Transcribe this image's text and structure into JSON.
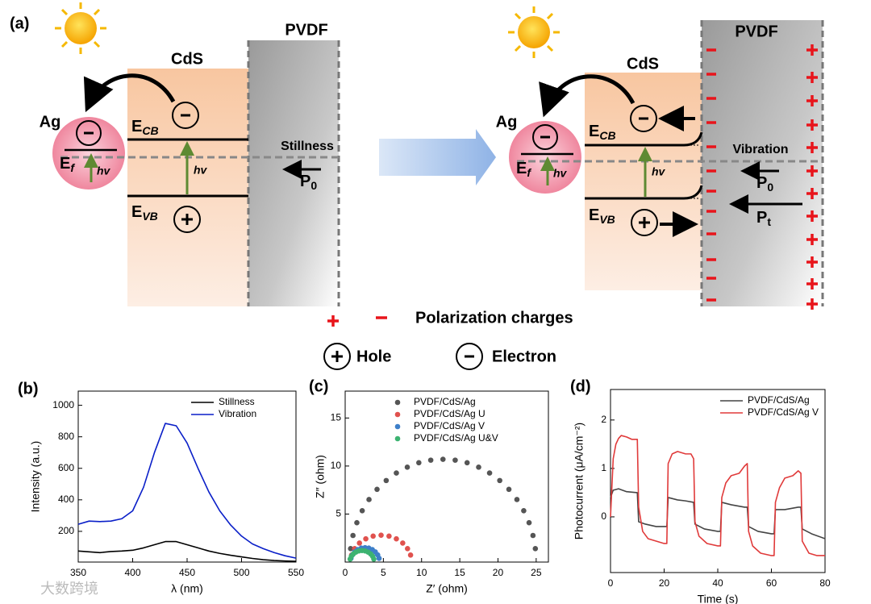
{
  "diagram": {
    "panel": "(a)",
    "left": {
      "pvdf": "PVDF",
      "cds": "CdS",
      "ag": "Ag",
      "ecb": {
        "main": "E",
        "sub": "CB"
      },
      "evb": {
        "main": "E",
        "sub": "VB"
      },
      "ef": {
        "main": "E",
        "sub": "f"
      },
      "hv_ag": "hv",
      "hv_cds": "hv",
      "state": "Stillness",
      "p0": {
        "main": "P",
        "sub": "0"
      }
    },
    "right": {
      "pvdf": "PVDF",
      "cds": "CdS",
      "ag": "Ag",
      "ecb": {
        "main": "E",
        "sub": "CB"
      },
      "evb": {
        "main": "E",
        "sub": "VB"
      },
      "ef": {
        "main": "E",
        "sub": "f"
      },
      "hv_ag": "hv",
      "hv_cds": "hv",
      "state": "Vibration",
      "p0": {
        "main": "P",
        "sub": "0"
      },
      "pt": {
        "main": "P",
        "sub": "t"
      }
    },
    "legend": {
      "polarization": "Polarization charges",
      "hole": "Hole",
      "electron": "Electron"
    }
  },
  "watermark": "大数跨境",
  "chart_data": [
    {
      "type": "line",
      "panel": "(b)",
      "xlabel": "λ (nm)",
      "ylabel": "Intensity (a.u.)",
      "xlim": [
        350,
        550
      ],
      "ylim": [
        5,
        1090
      ],
      "xticks": [
        350,
        400,
        450,
        500,
        550
      ],
      "yticks": [
        200,
        400,
        600,
        800,
        1000
      ],
      "legend": "upper right",
      "x": [
        350,
        360,
        370,
        380,
        390,
        400,
        410,
        420,
        430,
        440,
        450,
        460,
        470,
        480,
        490,
        500,
        510,
        520,
        530,
        540,
        550
      ],
      "series": [
        {
          "name": "Stillness",
          "color": "#000000",
          "values": [
            75,
            70,
            65,
            72,
            75,
            80,
            95,
            115,
            135,
            135,
            115,
            95,
            75,
            60,
            48,
            38,
            28,
            20,
            15,
            12,
            10
          ]
        },
        {
          "name": "Vibration",
          "color": "#0a1fc8",
          "values": [
            245,
            265,
            262,
            265,
            280,
            330,
            480,
            700,
            885,
            870,
            760,
            600,
            450,
            330,
            240,
            170,
            120,
            90,
            65,
            45,
            30
          ]
        }
      ]
    },
    {
      "type": "scatter",
      "panel": "(c)",
      "xlabel": "Z′ (ohm)",
      "ylabel": "Z″ (ohm)",
      "xlim": [
        0,
        26.6
      ],
      "ylim": [
        0,
        17.8
      ],
      "xticks": [
        0,
        5,
        10,
        15,
        20,
        25
      ],
      "yticks": [
        5,
        10,
        15
      ],
      "legend": "upper center",
      "series": [
        {
          "name": "PVDF/CdS/Ag",
          "color": "#555555",
          "x": [
            0.71,
            1.02,
            1.53,
            2.23,
            3.12,
            4.17,
            5.37,
            6.7,
            8.13,
            9.64,
            11.2,
            12.8,
            14.4,
            15.96,
            17.47,
            18.9,
            20.23,
            21.43,
            22.48,
            23.37,
            24.07,
            24.58,
            24.89
          ],
          "values": [
            1.4,
            2.77,
            4.1,
            5.35,
            6.51,
            7.57,
            8.49,
            9.27,
            9.88,
            10.34,
            10.61,
            10.7,
            10.61,
            10.34,
            9.88,
            9.27,
            8.49,
            7.57,
            6.51,
            5.35,
            4.1,
            2.77,
            1.4
          ]
        },
        {
          "name": "PVDF/CdS/Ag U",
          "color": "#e0524e",
          "x": [
            0.84,
            1.24,
            1.87,
            2.7,
            3.66,
            4.7,
            5.74,
            6.7,
            7.53,
            8.16,
            8.56
          ],
          "values": [
            0.73,
            1.4,
            1.98,
            2.42,
            2.7,
            2.8,
            2.7,
            2.42,
            1.98,
            1.4,
            0.73
          ]
        },
        {
          "name": "PVDF/CdS/Ag V",
          "color": "#3d7fc9",
          "x": [
            0.76,
            0.95,
            1.26,
            1.65,
            2.11,
            2.6,
            3.09,
            3.55,
            3.94,
            4.25,
            4.44
          ],
          "values": [
            0.39,
            0.75,
            1.06,
            1.3,
            1.45,
            1.5,
            1.45,
            1.3,
            1.06,
            0.75,
            0.39
          ]
        },
        {
          "name": "PVDF/CdS/Ag U&V",
          "color": "#3cb371",
          "x": [
            0.65,
            0.81,
            1.07,
            1.4,
            1.79,
            2.2,
            2.61,
            3.0,
            3.33,
            3.59,
            3.75
          ],
          "values": [
            0.31,
            0.6,
            0.85,
            1.04,
            1.16,
            1.2,
            1.16,
            1.04,
            0.85,
            0.6,
            0.31
          ]
        }
      ]
    },
    {
      "type": "line",
      "panel": "(d)",
      "xlabel": "Time (s)",
      "ylabel": "Photocurrent (μA/cm⁻²)",
      "xlim": [
        0,
        80
      ],
      "ylim": [
        -1.15,
        2.63
      ],
      "xticks": [
        0,
        20,
        40,
        60,
        80
      ],
      "yticks": [
        0,
        1,
        2
      ],
      "legend": "upper right",
      "series": [
        {
          "name": "PVDF/CdS/Ag",
          "color": "#444444",
          "x": [
            0,
            1,
            3,
            6,
            10,
            10.5,
            13,
            17,
            21,
            21.5,
            25,
            28,
            31,
            31.5,
            35,
            40,
            41,
            41.5,
            45,
            50,
            51,
            51.5,
            55,
            60,
            61,
            61.5,
            65,
            70,
            71,
            71.5,
            75,
            80
          ],
          "values": [
            0.4,
            0.55,
            0.58,
            0.52,
            0.5,
            -0.1,
            -0.15,
            -0.2,
            -0.2,
            0.4,
            0.35,
            0.33,
            0.3,
            -0.15,
            -0.25,
            -0.3,
            -0.3,
            0.3,
            0.25,
            0.2,
            0.2,
            -0.2,
            -0.3,
            -0.35,
            -0.35,
            0.15,
            0.15,
            0.2,
            0.2,
            -0.25,
            -0.35,
            -0.45
          ]
        },
        {
          "name": "PVDF/CdS/Ag V",
          "color": "#e03a3a",
          "x": [
            0,
            1,
            2,
            3,
            4,
            6,
            8,
            10,
            10.5,
            12,
            14,
            17,
            20,
            21,
            21.5,
            23,
            25,
            28,
            30,
            31,
            31.5,
            33,
            36,
            40,
            41,
            41.5,
            43,
            45,
            48,
            50,
            51,
            51.5,
            53,
            56,
            60,
            61,
            61.5,
            63,
            65,
            68,
            70,
            71,
            71.5,
            74,
            77,
            80
          ],
          "values": [
            0,
            1.2,
            1.5,
            1.62,
            1.68,
            1.65,
            1.6,
            1.6,
            0.2,
            -0.3,
            -0.45,
            -0.5,
            -0.55,
            -0.55,
            1.1,
            1.3,
            1.35,
            1.3,
            1.3,
            1.2,
            -0.1,
            -0.4,
            -0.55,
            -0.6,
            -0.6,
            0.4,
            0.7,
            0.85,
            0.9,
            1.05,
            1.1,
            -0.3,
            -0.6,
            -0.75,
            -0.8,
            -0.8,
            0.3,
            0.6,
            0.8,
            0.85,
            0.95,
            0.9,
            -0.5,
            -0.75,
            -0.8,
            -0.8
          ]
        }
      ]
    }
  ]
}
